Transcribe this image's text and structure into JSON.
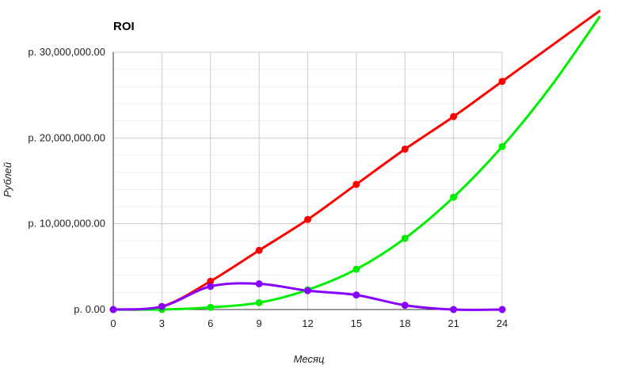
{
  "chart_data": {
    "type": "line",
    "title": "ROI",
    "xlabel": "Месяц",
    "ylabel": "Рублей",
    "x": [
      0,
      3,
      6,
      9,
      12,
      15,
      18,
      21,
      24
    ],
    "xlim": [
      0,
      24
    ],
    "ylim": [
      0,
      30000000
    ],
    "x_ticks": [
      "0",
      "3",
      "6",
      "9",
      "12",
      "15",
      "18",
      "21",
      "24"
    ],
    "y_ticks": [
      {
        "value": 0,
        "label": "р. 0.00"
      },
      {
        "value": 10000000,
        "label": "р. 10,000,000.00"
      },
      {
        "value": 20000000,
        "label": "р. 20,000,000.00"
      },
      {
        "value": 30000000,
        "label": "р. 30,000,000.00"
      }
    ],
    "grid": true,
    "series": [
      {
        "color": "#ff0000",
        "values": [
          0,
          350000,
          3300000,
          6900000,
          10500000,
          14600000,
          18700000,
          22500000,
          26600000
        ],
        "extends_beyond_plot": true
      },
      {
        "color": "#00ee00",
        "values": [
          0,
          0,
          250000,
          800000,
          2300000,
          4700000,
          8300000,
          13100000,
          19000000
        ],
        "extends_beyond_plot": true
      },
      {
        "color": "#8800ff",
        "values": [
          0,
          350000,
          2700000,
          3000000,
          2200000,
          1700000,
          500000,
          0,
          0
        ],
        "extends_beyond_plot": false
      }
    ]
  }
}
